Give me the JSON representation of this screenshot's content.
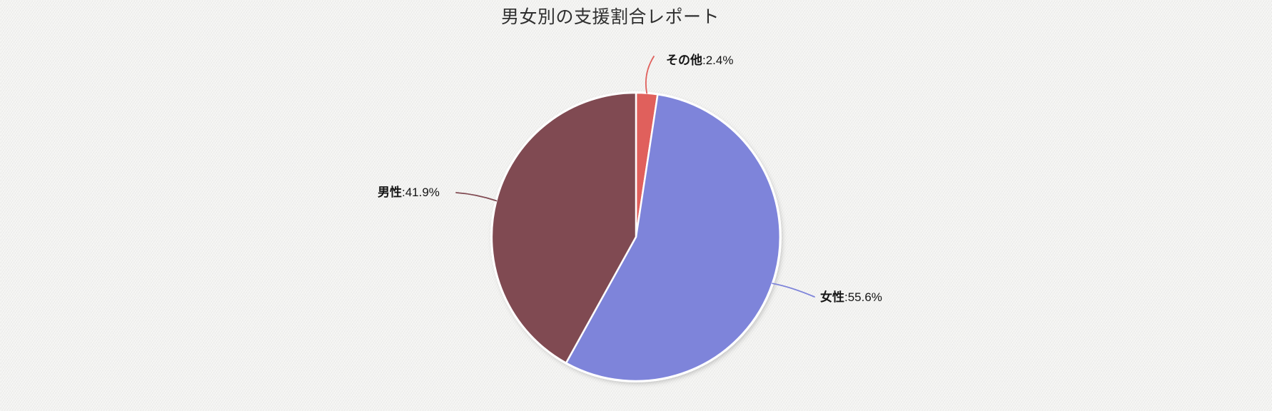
{
  "page": {
    "background_color": "#f1f1ef"
  },
  "chart_data": {
    "type": "pie",
    "title": "男女別の支援割合レポート",
    "unit": "%",
    "start_angle": "12-oclock",
    "direction": "clockwise",
    "legend_position": "none",
    "segments": [
      {
        "label": "その他",
        "value": 2.4,
        "display_value": ":2.4%",
        "color": "#e0605c"
      },
      {
        "label": "女性",
        "value": 55.6,
        "display_value": ":55.6%",
        "color": "#7e84da"
      },
      {
        "label": "男性",
        "value": 41.9,
        "display_value": ":41.9%",
        "color": "#804a52"
      }
    ],
    "style": {
      "slice_stroke_color": "#ffffff",
      "title_color": "#2f2f2f",
      "label_color": "#151515"
    }
  }
}
